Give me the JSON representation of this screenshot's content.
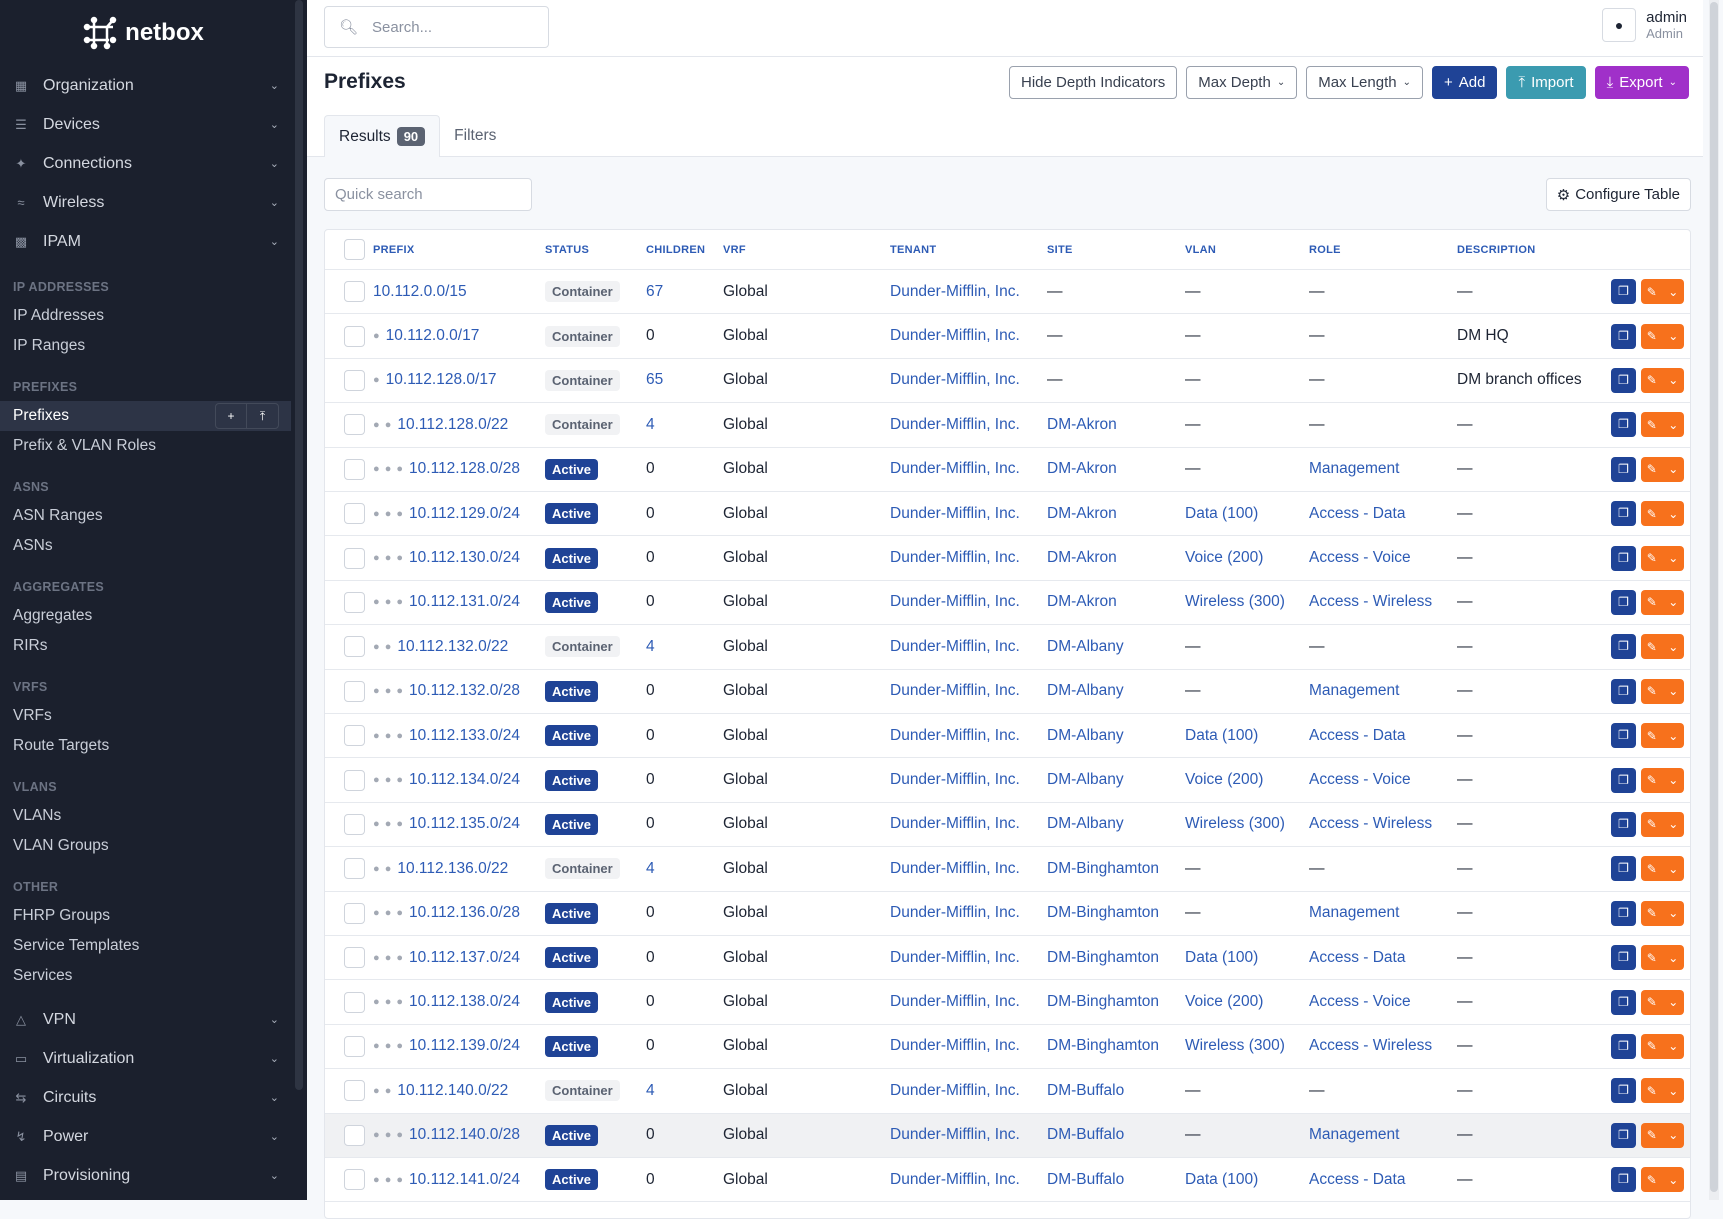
{
  "brand": "netbox",
  "sidebar": {
    "top_menus": [
      {
        "label": "Organization",
        "icon": "building-icon"
      },
      {
        "label": "Devices",
        "icon": "server-icon"
      },
      {
        "label": "Connections",
        "icon": "plug-icon"
      },
      {
        "label": "Wireless",
        "icon": "wifi-icon"
      },
      {
        "label": "IPAM",
        "icon": "ip-icon"
      }
    ],
    "sections": [
      {
        "header": "IP ADDRESSES",
        "items": [
          "IP Addresses",
          "IP Ranges"
        ]
      },
      {
        "header": "PREFIXES",
        "items": [
          "Prefixes",
          "Prefix & VLAN Roles"
        ]
      },
      {
        "header": "ASNS",
        "items": [
          "ASN Ranges",
          "ASNs"
        ]
      },
      {
        "header": "AGGREGATES",
        "items": [
          "Aggregates",
          "RIRs"
        ]
      },
      {
        "header": "VRFS",
        "items": [
          "VRFs",
          "Route Targets"
        ]
      },
      {
        "header": "VLANS",
        "items": [
          "VLANs",
          "VLAN Groups"
        ]
      },
      {
        "header": "OTHER",
        "items": [
          "FHRP Groups",
          "Service Templates",
          "Services"
        ]
      }
    ],
    "active_item": "Prefixes",
    "bottom_menus": [
      {
        "label": "VPN",
        "icon": "vpn-icon"
      },
      {
        "label": "Virtualization",
        "icon": "monitor-icon"
      },
      {
        "label": "Circuits",
        "icon": "circuit-icon"
      },
      {
        "label": "Power",
        "icon": "power-icon"
      },
      {
        "label": "Provisioning",
        "icon": "provisioning-icon"
      }
    ]
  },
  "topbar": {
    "search_placeholder": "Search...",
    "user_name": "admin",
    "user_role": "Admin"
  },
  "page": {
    "title": "Prefixes",
    "buttons": {
      "hide_depth": "Hide Depth Indicators",
      "max_depth": "Max Depth",
      "max_length": "Max Length",
      "add": "Add",
      "import": "Import",
      "export": "Export"
    },
    "tabs": {
      "results": "Results",
      "results_count": "90",
      "filters": "Filters"
    },
    "quick_search_placeholder": "Quick search",
    "configure_table": "Configure Table"
  },
  "colors": {
    "primary": "#1f4396",
    "import": "#3b9bb0",
    "export": "#a030c9",
    "edit": "#f7711c",
    "sidebar": "#1b202d"
  },
  "table": {
    "columns": [
      "PREFIX",
      "STATUS",
      "CHILDREN",
      "VRF",
      "TENANT",
      "SITE",
      "VLAN",
      "ROLE",
      "DESCRIPTION"
    ],
    "rows": [
      {
        "depth": 0,
        "prefix": "10.112.0.0/15",
        "status": "Container",
        "children": "67",
        "vrf": "Global",
        "tenant": "Dunder-Mifflin, Inc.",
        "site": "—",
        "vlan": "—",
        "role": "—",
        "description": "—"
      },
      {
        "depth": 1,
        "prefix": "10.112.0.0/17",
        "status": "Container",
        "children": "0",
        "vrf": "Global",
        "tenant": "Dunder-Mifflin, Inc.",
        "site": "—",
        "vlan": "—",
        "role": "—",
        "description": "DM HQ"
      },
      {
        "depth": 1,
        "prefix": "10.112.128.0/17",
        "status": "Container",
        "children": "65",
        "vrf": "Global",
        "tenant": "Dunder-Mifflin, Inc.",
        "site": "—",
        "vlan": "—",
        "role": "—",
        "description": "DM branch offices"
      },
      {
        "depth": 2,
        "prefix": "10.112.128.0/22",
        "status": "Container",
        "children": "4",
        "vrf": "Global",
        "tenant": "Dunder-Mifflin, Inc.",
        "site": "DM-Akron",
        "vlan": "—",
        "role": "—",
        "description": "—"
      },
      {
        "depth": 3,
        "prefix": "10.112.128.0/28",
        "status": "Active",
        "children": "0",
        "vrf": "Global",
        "tenant": "Dunder-Mifflin, Inc.",
        "site": "DM-Akron",
        "vlan": "—",
        "role": "Management",
        "description": "—"
      },
      {
        "depth": 3,
        "prefix": "10.112.129.0/24",
        "status": "Active",
        "children": "0",
        "vrf": "Global",
        "tenant": "Dunder-Mifflin, Inc.",
        "site": "DM-Akron",
        "vlan": "Data (100)",
        "role": "Access - Data",
        "description": "—"
      },
      {
        "depth": 3,
        "prefix": "10.112.130.0/24",
        "status": "Active",
        "children": "0",
        "vrf": "Global",
        "tenant": "Dunder-Mifflin, Inc.",
        "site": "DM-Akron",
        "vlan": "Voice (200)",
        "role": "Access - Voice",
        "description": "—"
      },
      {
        "depth": 3,
        "prefix": "10.112.131.0/24",
        "status": "Active",
        "children": "0",
        "vrf": "Global",
        "tenant": "Dunder-Mifflin, Inc.",
        "site": "DM-Akron",
        "vlan": "Wireless (300)",
        "role": "Access - Wireless",
        "description": "—"
      },
      {
        "depth": 2,
        "prefix": "10.112.132.0/22",
        "status": "Container",
        "children": "4",
        "vrf": "Global",
        "tenant": "Dunder-Mifflin, Inc.",
        "site": "DM-Albany",
        "vlan": "—",
        "role": "—",
        "description": "—"
      },
      {
        "depth": 3,
        "prefix": "10.112.132.0/28",
        "status": "Active",
        "children": "0",
        "vrf": "Global",
        "tenant": "Dunder-Mifflin, Inc.",
        "site": "DM-Albany",
        "vlan": "—",
        "role": "Management",
        "description": "—"
      },
      {
        "depth": 3,
        "prefix": "10.112.133.0/24",
        "status": "Active",
        "children": "0",
        "vrf": "Global",
        "tenant": "Dunder-Mifflin, Inc.",
        "site": "DM-Albany",
        "vlan": "Data (100)",
        "role": "Access - Data",
        "description": "—"
      },
      {
        "depth": 3,
        "prefix": "10.112.134.0/24",
        "status": "Active",
        "children": "0",
        "vrf": "Global",
        "tenant": "Dunder-Mifflin, Inc.",
        "site": "DM-Albany",
        "vlan": "Voice (200)",
        "role": "Access - Voice",
        "description": "—"
      },
      {
        "depth": 3,
        "prefix": "10.112.135.0/24",
        "status": "Active",
        "children": "0",
        "vrf": "Global",
        "tenant": "Dunder-Mifflin, Inc.",
        "site": "DM-Albany",
        "vlan": "Wireless (300)",
        "role": "Access - Wireless",
        "description": "—"
      },
      {
        "depth": 2,
        "prefix": "10.112.136.0/22",
        "status": "Container",
        "children": "4",
        "vrf": "Global",
        "tenant": "Dunder-Mifflin, Inc.",
        "site": "DM-Binghamton",
        "vlan": "—",
        "role": "—",
        "description": "—"
      },
      {
        "depth": 3,
        "prefix": "10.112.136.0/28",
        "status": "Active",
        "children": "0",
        "vrf": "Global",
        "tenant": "Dunder-Mifflin, Inc.",
        "site": "DM-Binghamton",
        "vlan": "—",
        "role": "Management",
        "description": "—"
      },
      {
        "depth": 3,
        "prefix": "10.112.137.0/24",
        "status": "Active",
        "children": "0",
        "vrf": "Global",
        "tenant": "Dunder-Mifflin, Inc.",
        "site": "DM-Binghamton",
        "vlan": "Data (100)",
        "role": "Access - Data",
        "description": "—"
      },
      {
        "depth": 3,
        "prefix": "10.112.138.0/24",
        "status": "Active",
        "children": "0",
        "vrf": "Global",
        "tenant": "Dunder-Mifflin, Inc.",
        "site": "DM-Binghamton",
        "vlan": "Voice (200)",
        "role": "Access - Voice",
        "description": "—"
      },
      {
        "depth": 3,
        "prefix": "10.112.139.0/24",
        "status": "Active",
        "children": "0",
        "vrf": "Global",
        "tenant": "Dunder-Mifflin, Inc.",
        "site": "DM-Binghamton",
        "vlan": "Wireless (300)",
        "role": "Access - Wireless",
        "description": "—"
      },
      {
        "depth": 2,
        "prefix": "10.112.140.0/22",
        "status": "Container",
        "children": "4",
        "vrf": "Global",
        "tenant": "Dunder-Mifflin, Inc.",
        "site": "DM-Buffalo",
        "vlan": "—",
        "role": "—",
        "description": "—"
      },
      {
        "depth": 3,
        "prefix": "10.112.140.0/28",
        "status": "Active",
        "children": "0",
        "vrf": "Global",
        "tenant": "Dunder-Mifflin, Inc.",
        "site": "DM-Buffalo",
        "vlan": "—",
        "role": "Management",
        "description": "—",
        "highlighted": true
      },
      {
        "depth": 3,
        "prefix": "10.112.141.0/24",
        "status": "Active",
        "children": "0",
        "vrf": "Global",
        "tenant": "Dunder-Mifflin, Inc.",
        "site": "DM-Buffalo",
        "vlan": "Data (100)",
        "role": "Access - Data",
        "description": "—"
      }
    ]
  }
}
